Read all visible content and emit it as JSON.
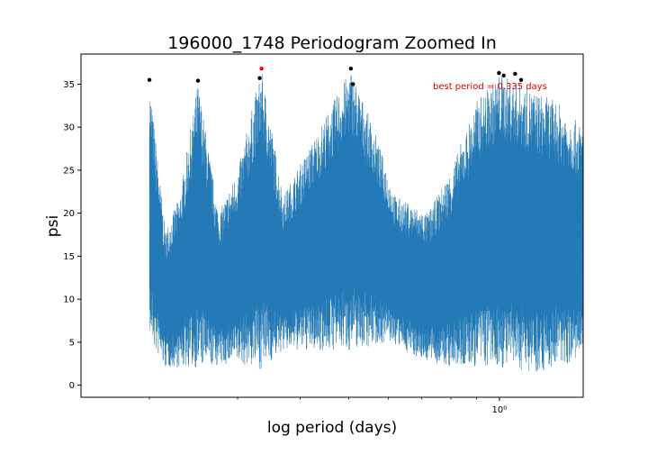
{
  "chart_data": {
    "type": "line",
    "title": "196000_1748 Periodogram Zoomed In",
    "xlabel": "log period (days)",
    "ylabel": "psi",
    "xscale": "log",
    "xlim": [
      0.146,
      1.47
    ],
    "ylim": [
      -1.4,
      38.5
    ],
    "x_tick_labels": [
      {
        "value": 1.0,
        "label": "10⁰"
      }
    ],
    "x_minor_ticks": [
      0.2,
      0.3,
      0.4,
      0.5,
      0.6,
      0.7,
      0.8,
      0.9
    ],
    "yticks": [
      0,
      5,
      10,
      15,
      20,
      25,
      30,
      35
    ],
    "grid": false,
    "line_color": "#1f77b4",
    "series": [
      {
        "envelope_peaks": [
          {
            "period": 0.2,
            "peak": 35.5,
            "floor": 3
          },
          {
            "period": 0.25,
            "peak": 35.3,
            "floor": 2.5
          },
          {
            "period": 0.335,
            "peak": 36.8,
            "floor": 1.5
          },
          {
            "period": 0.505,
            "peak": 36.8,
            "floor": 3.5
          }
        ],
        "upper_envelope": [
          [
            0.2,
            35.5
          ],
          [
            0.215,
            18
          ],
          [
            0.23,
            22
          ],
          [
            0.25,
            35.3
          ],
          [
            0.275,
            20
          ],
          [
            0.3,
            25
          ],
          [
            0.335,
            36.8
          ],
          [
            0.37,
            22
          ],
          [
            0.42,
            28
          ],
          [
            0.505,
            36.8
          ],
          [
            0.56,
            30
          ],
          [
            0.62,
            22
          ],
          [
            0.72,
            20
          ],
          [
            0.8,
            25
          ],
          [
            0.9,
            33
          ],
          [
            1.0,
            36.2
          ],
          [
            1.1,
            35
          ],
          [
            1.3,
            33
          ],
          [
            1.47,
            30
          ]
        ],
        "lower_envelope": [
          [
            0.2,
            6
          ],
          [
            0.205,
            4
          ],
          [
            0.215,
            2
          ],
          [
            0.25,
            2
          ],
          [
            0.3,
            2.5
          ],
          [
            0.335,
            1.8
          ],
          [
            0.37,
            4
          ],
          [
            0.42,
            4
          ],
          [
            0.5,
            4
          ],
          [
            0.6,
            5
          ],
          [
            0.7,
            3
          ],
          [
            0.8,
            2
          ],
          [
            1.0,
            2
          ],
          [
            1.2,
            1.5
          ],
          [
            1.47,
            3
          ]
        ]
      }
    ],
    "marked_peaks": [
      {
        "period": 0.2,
        "psi": 35.5,
        "color": "#000000"
      },
      {
        "period": 0.25,
        "psi": 35.4,
        "color": "#000000"
      },
      {
        "period": 0.332,
        "psi": 35.7,
        "color": "#000000"
      },
      {
        "period": 0.335,
        "psi": 36.8,
        "color": "#ff0000"
      },
      {
        "period": 0.505,
        "psi": 36.8,
        "color": "#000000"
      },
      {
        "period": 0.51,
        "psi": 35.0,
        "color": "#000000"
      },
      {
        "period": 0.998,
        "psi": 36.3,
        "color": "#000000"
      },
      {
        "period": 1.02,
        "psi": 36.0,
        "color": "#000000"
      },
      {
        "period": 1.075,
        "psi": 36.2,
        "color": "#000000"
      },
      {
        "period": 1.105,
        "psi": 35.5,
        "color": "#000000"
      }
    ],
    "annotation": {
      "text": "best period = 0.335 days",
      "color": "#e00000"
    }
  }
}
